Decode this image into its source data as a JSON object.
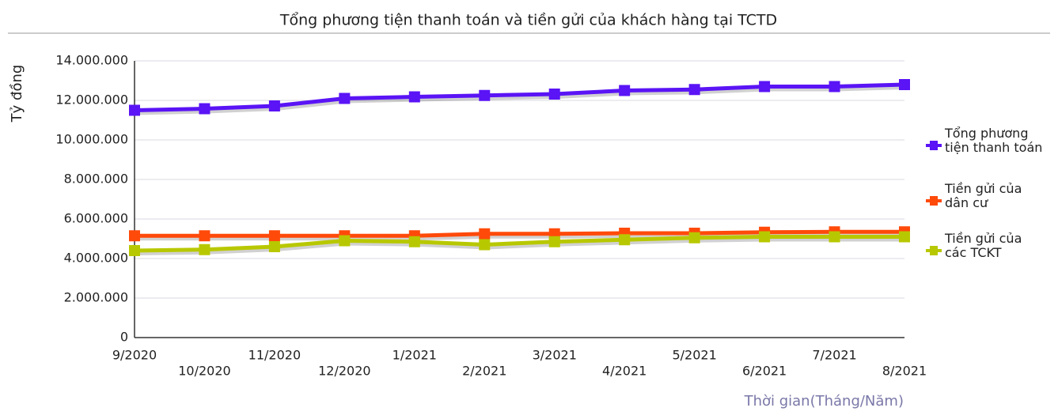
{
  "chart_data": {
    "type": "line",
    "title": "Tổng phương tiện thanh toán và tiền gửi của khách hàng tại TCTD",
    "y_label": "Tỷ đồng",
    "x_label": "Thời gian(Tháng/Năm)",
    "categories": [
      "9/2020",
      "10/2020",
      "11/2020",
      "12/2020",
      "1/2021",
      "2/2021",
      "3/2021",
      "4/2021",
      "5/2021",
      "6/2021",
      "7/2021",
      "8/2021"
    ],
    "series": [
      {
        "name": "Tổng phương tiện thanh toán",
        "color": "#5a14f5",
        "values": [
          11500000,
          11580000,
          11720000,
          12100000,
          12180000,
          12250000,
          12320000,
          12500000,
          12550000,
          12700000,
          12700000,
          12800000
        ]
      },
      {
        "name": "Tiền gửi của dân cư",
        "color": "#ff4a0a",
        "values": [
          5150000,
          5150000,
          5150000,
          5150000,
          5150000,
          5250000,
          5250000,
          5280000,
          5280000,
          5330000,
          5350000,
          5350000
        ]
      },
      {
        "name": "Tiền gửi của các TCKT",
        "color": "#b8c800",
        "values": [
          4400000,
          4450000,
          4600000,
          4900000,
          4850000,
          4700000,
          4850000,
          4950000,
          5050000,
          5100000,
          5100000,
          5100000
        ]
      }
    ],
    "ylim": [
      0,
      14000000
    ],
    "yticks": [
      0,
      {
        "value": 2000000,
        "label": "2.000.000"
      },
      {
        "value": 4000000,
        "label": "4.000.000"
      },
      {
        "value": 6000000,
        "label": "6.000.000"
      },
      {
        "value": 8000000,
        "label": "8.000.000"
      },
      {
        "value": 10000000,
        "label": "10.000.000"
      },
      {
        "value": 12000000,
        "label": "12.000.000"
      },
      {
        "value": 14000000,
        "label": "14.000.000"
      }
    ],
    "grid": true,
    "legend": "right"
  }
}
